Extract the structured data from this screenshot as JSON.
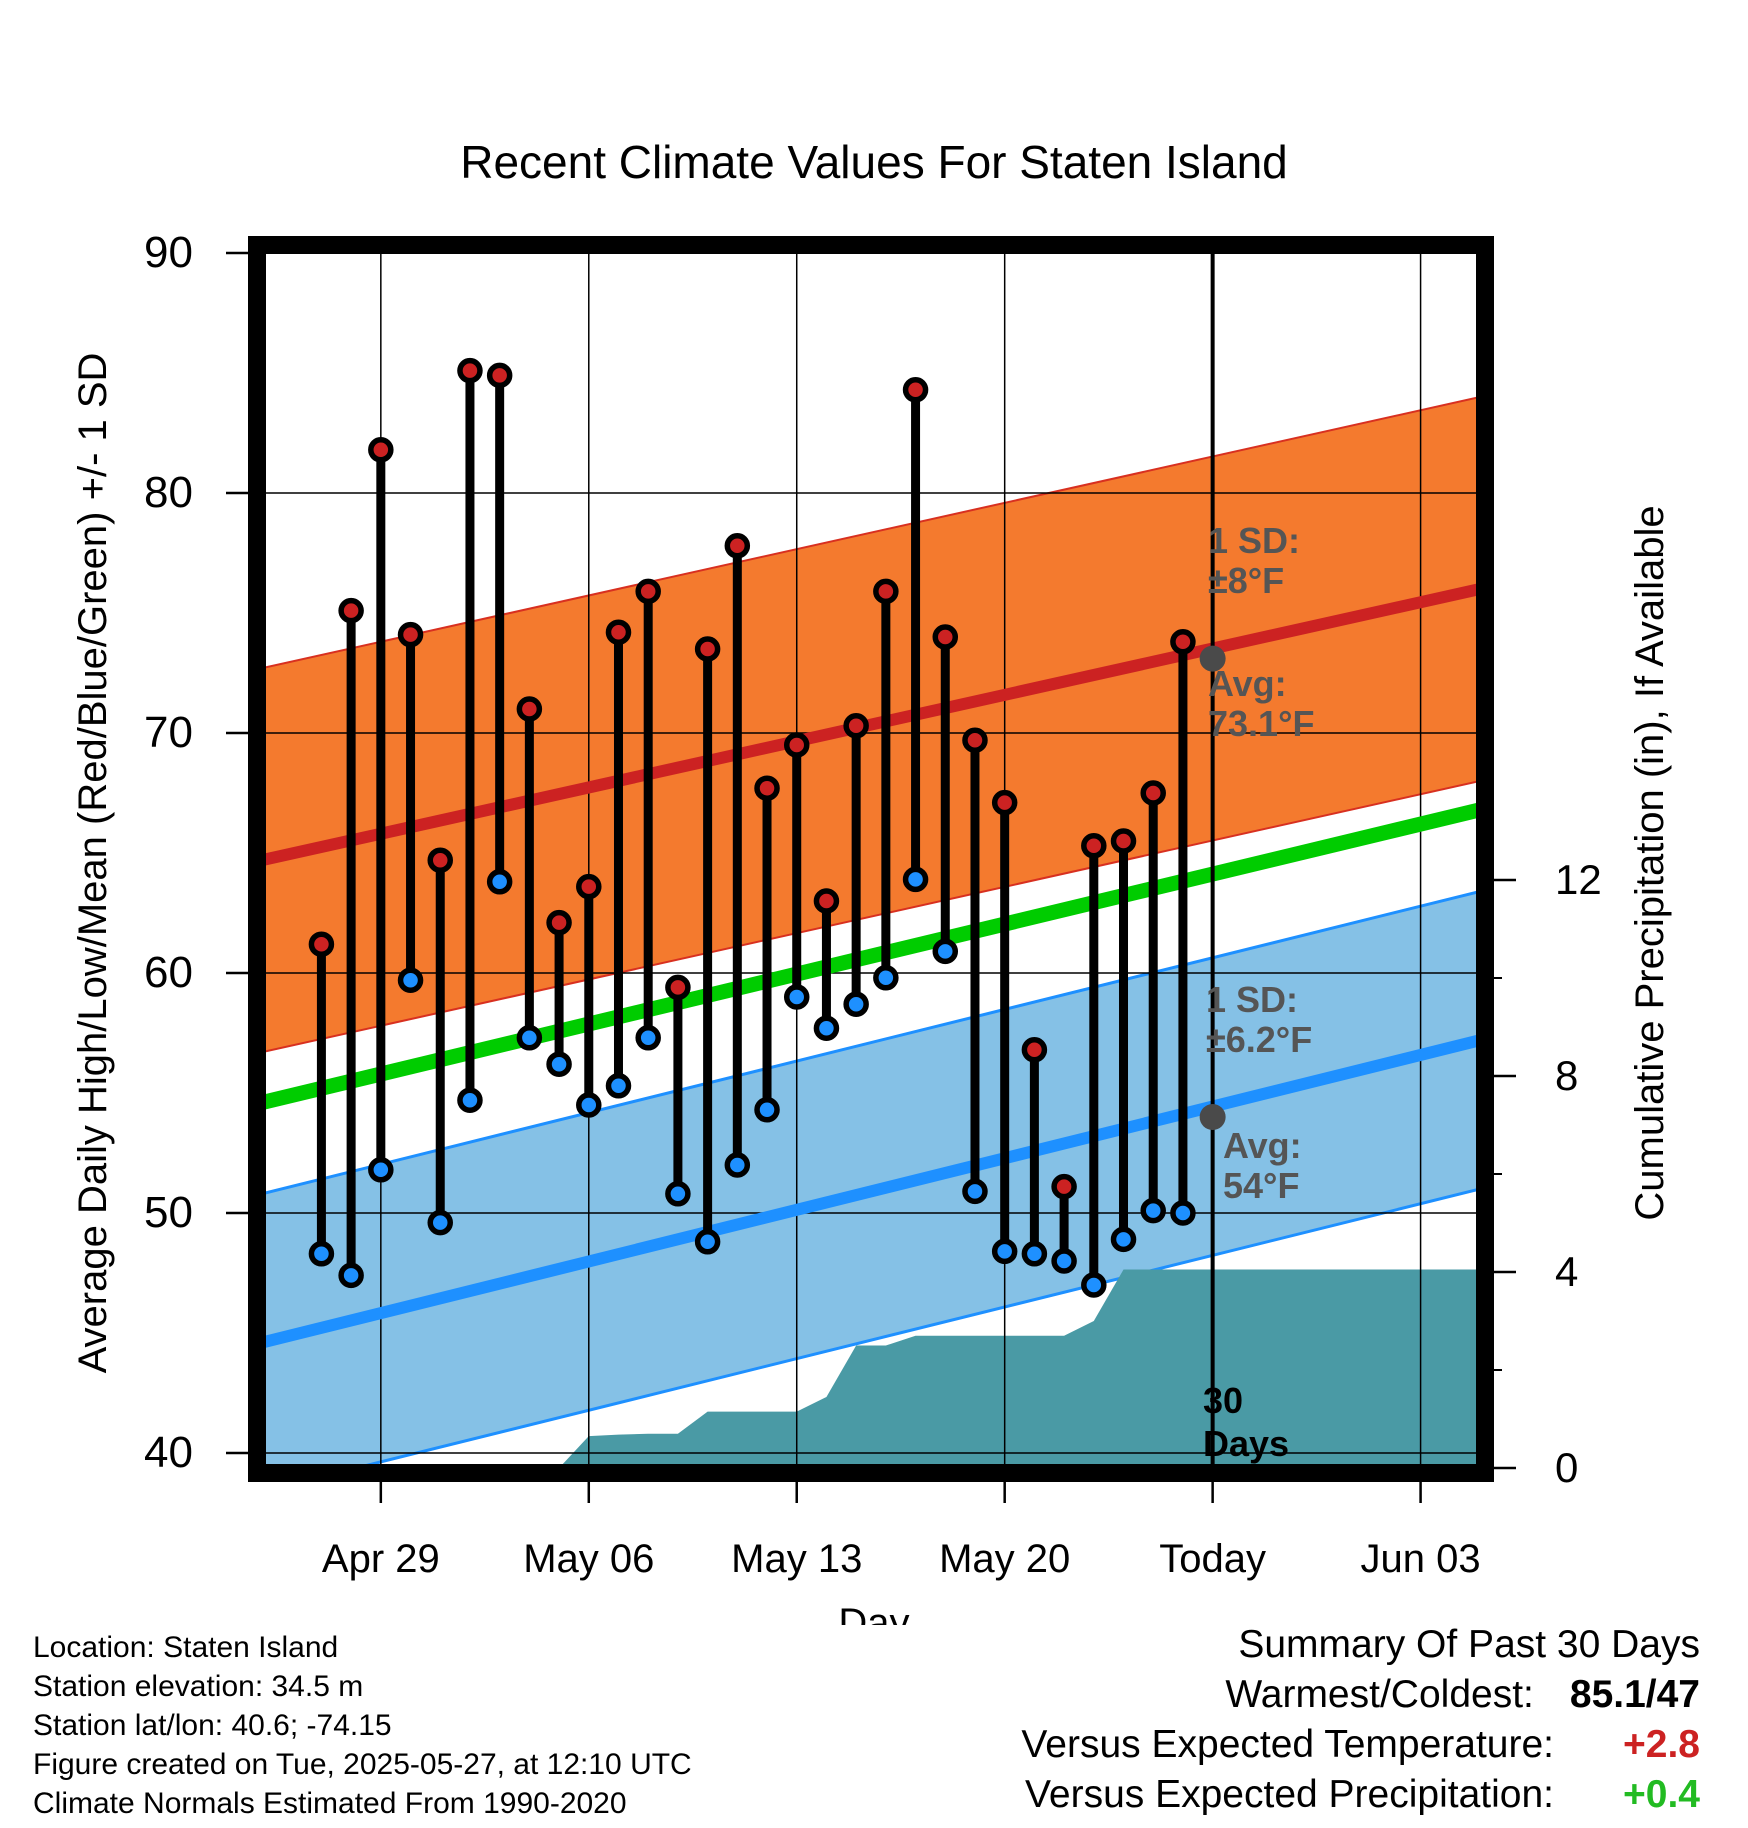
{
  "chart_data": {
    "type": "line",
    "title": "Recent Climate Values For Staten Island",
    "xlabel": "Day",
    "ylabel": "Average Daily High/Low/Mean (Red/Blue/Green) +/- 1 SD",
    "y2label": "Cumulative Precipitation (in), If Available",
    "ylim": [
      40,
      90
    ],
    "y2lim": [
      0,
      20
    ],
    "yticks": [
      "90",
      "80",
      "70",
      "60",
      "50",
      "40"
    ],
    "y2ticks": [
      "0",
      "4",
      "8",
      "12"
    ],
    "xtick_labels": [
      "Apr 29",
      "May 06",
      "May 13",
      "May 20",
      "Today",
      "Jun 03"
    ],
    "x_dates": [
      "2025-04-29",
      "2025-05-06",
      "2025-05-13",
      "2025-05-20",
      "2025-05-27",
      "2025-06-03"
    ],
    "xlim": [
      "2025-04-25",
      "2025-06-05"
    ],
    "days": [
      "2025-04-27",
      "2025-04-28",
      "2025-04-29",
      "2025-04-30",
      "2025-05-01",
      "2025-05-02",
      "2025-05-03",
      "2025-05-04",
      "2025-05-05",
      "2025-05-06",
      "2025-05-07",
      "2025-05-08",
      "2025-05-09",
      "2025-05-10",
      "2025-05-11",
      "2025-05-12",
      "2025-05-13",
      "2025-05-14",
      "2025-05-15",
      "2025-05-16",
      "2025-05-17",
      "2025-05-18",
      "2025-05-19",
      "2025-05-20",
      "2025-05-21",
      "2025-05-22",
      "2025-05-23",
      "2025-05-24",
      "2025-05-25",
      "2025-05-26"
    ],
    "series": [
      {
        "name": "High",
        "color": "#cc2222",
        "values": [
          61.2,
          75.1,
          81.8,
          74.1,
          64.7,
          85.1,
          84.9,
          71.0,
          62.1,
          63.6,
          74.2,
          75.9,
          59.4,
          73.5,
          77.8,
          67.7,
          69.5,
          63.0,
          70.3,
          75.9,
          84.3,
          74.0,
          69.7,
          67.1,
          56.8,
          51.1,
          65.3,
          65.5,
          67.5,
          73.8
        ]
      },
      {
        "name": "Low",
        "color": "#1e90ff",
        "values": [
          48.3,
          47.4,
          51.8,
          59.7,
          49.6,
          54.7,
          63.8,
          57.3,
          56.2,
          54.5,
          55.3,
          57.3,
          50.8,
          48.8,
          52.0,
          54.3,
          59.0,
          57.7,
          58.7,
          59.8,
          63.9,
          60.9,
          50.9,
          48.4,
          48.3,
          48.0,
          47.0,
          48.9,
          50.1,
          50.0
        ]
      }
    ],
    "normals": {
      "high_mean": [
        64.7,
        76.0
      ],
      "high_sd": 8,
      "low_mean": [
        44.6,
        57.2
      ],
      "low_sd": 6.2,
      "mean_mean": [
        54.6,
        66.8
      ],
      "date_range": [
        "2025-04-25",
        "2025-06-05"
      ]
    },
    "precip_cumulative": {
      "dates": [
        "2025-05-01",
        "2025-05-05",
        "2025-05-06",
        "2025-05-07",
        "2025-05-08",
        "2025-05-09",
        "2025-05-10",
        "2025-05-11",
        "2025-05-12",
        "2025-05-13",
        "2025-05-14",
        "2025-05-15",
        "2025-05-16",
        "2025-05-17",
        "2025-05-18",
        "2025-05-19",
        "2025-05-20",
        "2025-05-21",
        "2025-05-22",
        "2025-05-23",
        "2025-05-24",
        "2025-05-25",
        "2025-05-26",
        "2025-06-05"
      ],
      "values": [
        0.0,
        0.0,
        0.65,
        0.68,
        0.7,
        0.7,
        1.15,
        1.15,
        1.15,
        1.15,
        1.45,
        2.5,
        2.5,
        2.7,
        2.7,
        2.7,
        2.7,
        2.7,
        2.7,
        3.0,
        4.05,
        4.05,
        4.05,
        4.05
      ]
    },
    "annotations": {
      "high_sd_label": "1 SD:",
      "high_sd_value": "±8°F",
      "high_avg_label": "Avg:",
      "high_avg_value": "73.1°F",
      "low_sd_label": "1 SD:",
      "low_sd_value": "±6.2°F",
      "low_avg_label": "Avg:",
      "low_avg_value": "54°F",
      "window_number": "30",
      "window_unit": "Days"
    },
    "today_marker": {
      "date": "2025-05-27",
      "high_avg": 73.1,
      "low_avg": 54
    },
    "colors": {
      "high_band": "#f47a2e",
      "high_line": "#cc2222",
      "low_band": "#85c1e6",
      "low_line": "#1e90ff",
      "mean_line": "#00cc00",
      "precip": "#4a9aa5",
      "annotation": "#555555"
    },
    "grid": true
  },
  "station_info": [
    "Location: Staten Island",
    "Station elevation: 34.5 m",
    "Station lat/lon: 40.6; -74.15",
    "Figure created on Tue, 2025-05-27, at 12:10 UTC",
    "Climate Normals Estimated From 1990-2020"
  ],
  "summary": {
    "title": "Summary Of Past 30 Days",
    "warmest_coldest_label": "Warmest/Coldest:",
    "warmest_coldest_value": "85.1/47",
    "temp_label": "Versus Expected Temperature:",
    "temp_value": "+2.8",
    "temp_color": "#cc2222",
    "precip_label": "Versus Expected Precipitation:",
    "precip_value": "+0.4",
    "precip_color": "#22bb22"
  }
}
